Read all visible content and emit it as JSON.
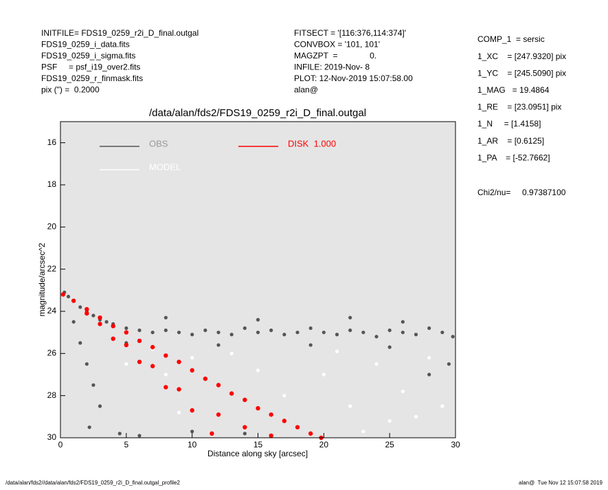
{
  "header": {
    "left": [
      "INITFILE= FDS19_0259_r2i_D_final.outgal",
      "FDS19_0259_i_data.fits",
      "FDS19_0259_i_sigma.fits",
      "PSF     = psf_i19_over2.fits",
      "FDS19_0259_r_finmask.fits",
      "pix (\") =  0.2000"
    ],
    "middle": [
      "FITSECT = '[116:376,114:374]'",
      "CONVBOX = '101, 101'",
      "MAGZPT  =              0.",
      "INFILE: 2019-Nov- 8",
      "PLOT: 12-Nov-2019 15:07:58.00",
      "alan@"
    ],
    "right": [
      "COMP_1  = sersic",
      "1_XC    = [247.9320] pix",
      "1_YC    = [245.5090] pix",
      "1_MAG   = 19.4864",
      "1_RE    = [23.0951] pix",
      "1_N     = [1.4158]",
      "1_AR    = [0.6125]",
      "1_PA    = [-52.7662]"
    ],
    "chi": "Chi2/nu=     0.97387100"
  },
  "footer": {
    "left": "/data/alan/fds2//data/alan/fds2/FDS19_0259_r2i_D_final.outgal_profile2",
    "right": "alan@  Tue Nov 12 15:07:58 2019"
  },
  "chart_data": {
    "type": "scatter",
    "title": "/data/alan/fds2/FDS19_0259_r2i_D_final.outgal",
    "x_label": "Distance along sky [arcsec]",
    "y_label": "magnitude/arcsec^2",
    "xlim": [
      0,
      30
    ],
    "ylim": [
      15,
      30
    ],
    "y_inverted": true,
    "xticks": [
      0,
      5,
      10,
      15,
      20,
      25,
      30
    ],
    "yticks": [
      16,
      18,
      20,
      22,
      24,
      26,
      28,
      30
    ],
    "series": [
      {
        "name": "OBS",
        "color": "#555555",
        "x": [
          0.3,
          0.6,
          1.0,
          1.5,
          2.0,
          2.5,
          3.0,
          3.5,
          4,
          5,
          6,
          7,
          8,
          9,
          10,
          11,
          12,
          13,
          14,
          15,
          16,
          17,
          18,
          19,
          20,
          21,
          22,
          23,
          24,
          25,
          26,
          27,
          28,
          29,
          29.8,
          1.0,
          1.5,
          2.0,
          2.5,
          3.0,
          2.2,
          4.5,
          6,
          10,
          14,
          28,
          29.5,
          8,
          15,
          22,
          26,
          5,
          12,
          19,
          25
        ],
        "y": [
          23.1,
          23.3,
          23.5,
          23.8,
          24.0,
          24.2,
          24.4,
          24.5,
          24.6,
          24.8,
          24.9,
          25.0,
          24.9,
          25.0,
          25.1,
          24.9,
          25.0,
          25.1,
          24.8,
          25.0,
          24.9,
          25.1,
          25.0,
          24.8,
          25.0,
          25.1,
          24.9,
          25.0,
          25.2,
          24.9,
          25.0,
          25.1,
          24.8,
          25.0,
          25.2,
          24.5,
          25.5,
          26.5,
          27.5,
          28.5,
          29.5,
          29.8,
          29.9,
          29.7,
          29.8,
          27,
          26.5,
          24.3,
          24.4,
          24.3,
          24.5,
          25.5,
          25.6,
          25.6,
          25.7
        ]
      },
      {
        "name": "MODEL",
        "color": "#ffffff",
        "x": [
          5,
          8,
          10,
          12,
          15,
          17,
          20,
          22,
          24,
          26,
          27,
          28,
          29,
          18,
          23,
          9,
          13,
          21,
          7,
          25
        ],
        "y": [
          26.5,
          27,
          26.2,
          27.5,
          26.8,
          28,
          27,
          28.5,
          26.5,
          27.8,
          29,
          26.2,
          28.5,
          29.5,
          29.7,
          28.8,
          26,
          25.9,
          25.8,
          29.2
        ]
      },
      {
        "name": "DISK  1.000",
        "color": "#ff0000",
        "x": [
          0.2,
          1,
          2,
          3,
          4,
          5,
          6,
          7,
          8,
          9,
          10,
          11,
          12,
          13,
          14,
          15,
          16,
          17,
          18,
          19,
          19.8,
          2,
          4,
          6,
          8,
          10,
          11.5,
          7,
          9,
          12,
          14,
          16,
          5,
          3
        ],
        "y": [
          23.2,
          23.5,
          23.9,
          24.3,
          24.7,
          25.0,
          25.4,
          25.7,
          26.1,
          26.4,
          26.8,
          27.2,
          27.5,
          27.9,
          28.2,
          28.6,
          28.9,
          29.2,
          29.5,
          29.8,
          30,
          24.1,
          25.3,
          26.4,
          27.6,
          28.7,
          29.8,
          26.6,
          27.7,
          28.9,
          29.5,
          29.9,
          25.6,
          24.6
        ]
      }
    ]
  }
}
